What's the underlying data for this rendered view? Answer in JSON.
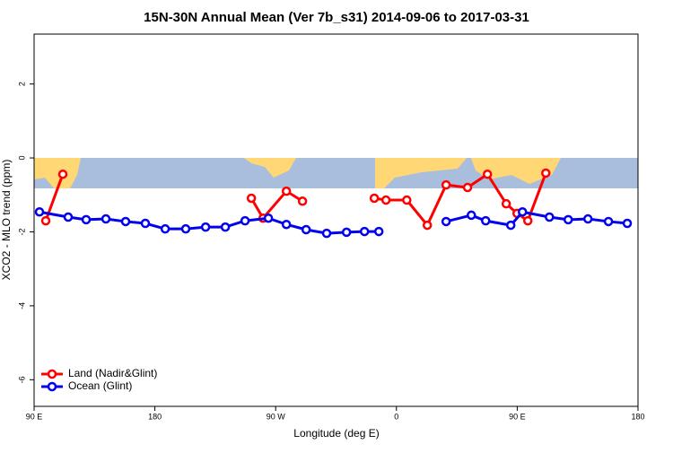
{
  "chart_data": {
    "type": "line",
    "title": "15N-30N Annual Mean (Ver 7b_s31)   2014-09-06 to 2017-03-31",
    "xlabel": "Longitude (deg E)",
    "ylabel": "XCO2 - MLO trend (ppm)",
    "xlim": [
      90,
      540
    ],
    "xticks": [
      {
        "value": 90,
        "label": "90 E"
      },
      180,
      {
        "value": 270,
        "label": "90 W"
      },
      {
        "value": 360,
        "label": "0"
      },
      {
        "value": 450,
        "label": "90 E"
      },
      {
        "value": 540,
        "label": "180"
      }
    ],
    "ylim": [
      -6.72,
      3.35
    ],
    "yticks": [
      -6,
      -4,
      -2,
      0,
      2
    ],
    "legend": "bottom-left",
    "series": [
      {
        "name": "Land (Nadir&Glint)",
        "color": "#ff0000",
        "x": [
          98.7,
          111.4,
          null,
          251.9,
          260.6,
          278,
          290,
          null,
          343.5,
          352.2,
          367.7,
          383,
          397,
          413,
          427.8,
          441.8,
          449.9,
          457.9,
          471.3
        ],
        "values": [
          -1.7,
          -0.44,
          null,
          -1.09,
          -1.63,
          -0.9,
          -1.17,
          null,
          -1.09,
          -1.14,
          -1.14,
          -1.82,
          -0.73,
          -0.8,
          -0.44,
          -1.24,
          -1.5,
          -1.7,
          -0.41
        ]
      },
      {
        "name": "Ocean (Glint)",
        "color": "#0000ee",
        "x": [
          94,
          115.4,
          128.8,
          143.5,
          158.2,
          172.9,
          187.7,
          203,
          217.8,
          232.5,
          247.2,
          264.6,
          278,
          292.7,
          308,
          322.8,
          336.2,
          346.9,
          null,
          397,
          415.8,
          426.5,
          445.2,
          453.9,
          474,
          488,
          502.7,
          518,
          532
        ],
        "values": [
          -1.46,
          -1.6,
          -1.67,
          -1.65,
          -1.72,
          -1.77,
          -1.92,
          -1.92,
          -1.87,
          -1.87,
          -1.7,
          -1.63,
          -1.8,
          -1.94,
          -2.04,
          -2.01,
          -1.99,
          -1.99,
          null,
          -1.72,
          -1.55,
          -1.7,
          -1.82,
          -1.46,
          -1.6,
          -1.67,
          -1.65,
          -1.72,
          -1.77
        ]
      }
    ]
  }
}
